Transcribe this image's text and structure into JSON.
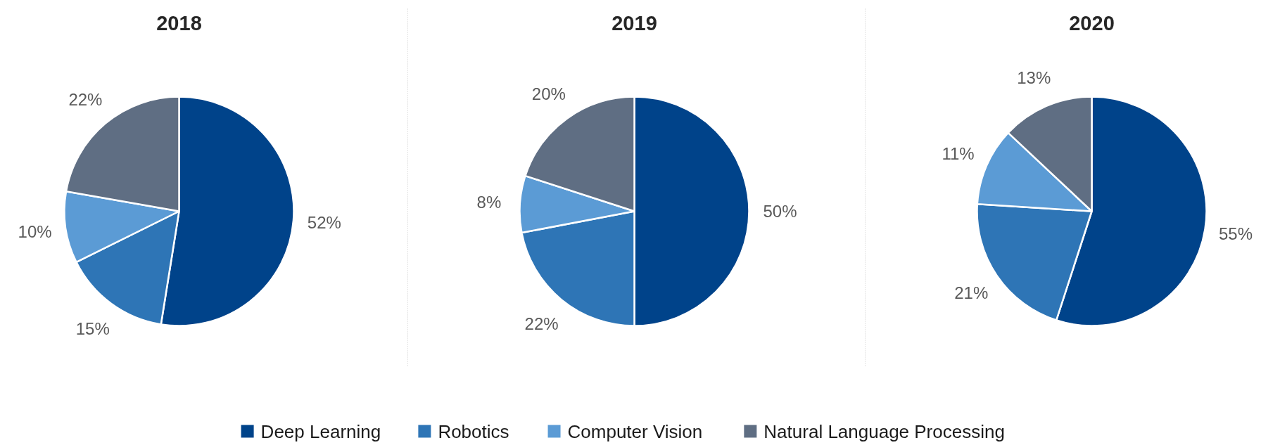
{
  "chart_data": [
    {
      "type": "pie",
      "title": "2018",
      "categories": [
        "Deep Learning",
        "Robotics",
        "Computer Vision",
        "Natural Language Processing"
      ],
      "values": [
        52,
        15,
        10,
        22
      ],
      "value_labels": [
        "52%",
        "15%",
        "10%",
        "22%"
      ],
      "colors": [
        "#00438a",
        "#2e75b6",
        "#5b9bd5",
        "#5f6e83"
      ],
      "legend": "bottom"
    },
    {
      "type": "pie",
      "title": "2019",
      "values": [
        50,
        22,
        8,
        20
      ],
      "value_labels": [
        "50%",
        "22%",
        "8%",
        "20%"
      ],
      "colors": [
        "#00438a",
        "#2e75b6",
        "#5b9bd5",
        "#5f6e83"
      ]
    },
    {
      "type": "pie",
      "title": "2020",
      "values": [
        55,
        21,
        11,
        13
      ],
      "value_labels": [
        "55%",
        "21%",
        "11%",
        "13%"
      ],
      "colors": [
        "#00438a",
        "#2e75b6",
        "#5b9bd5",
        "#5f6e83"
      ]
    }
  ]
}
